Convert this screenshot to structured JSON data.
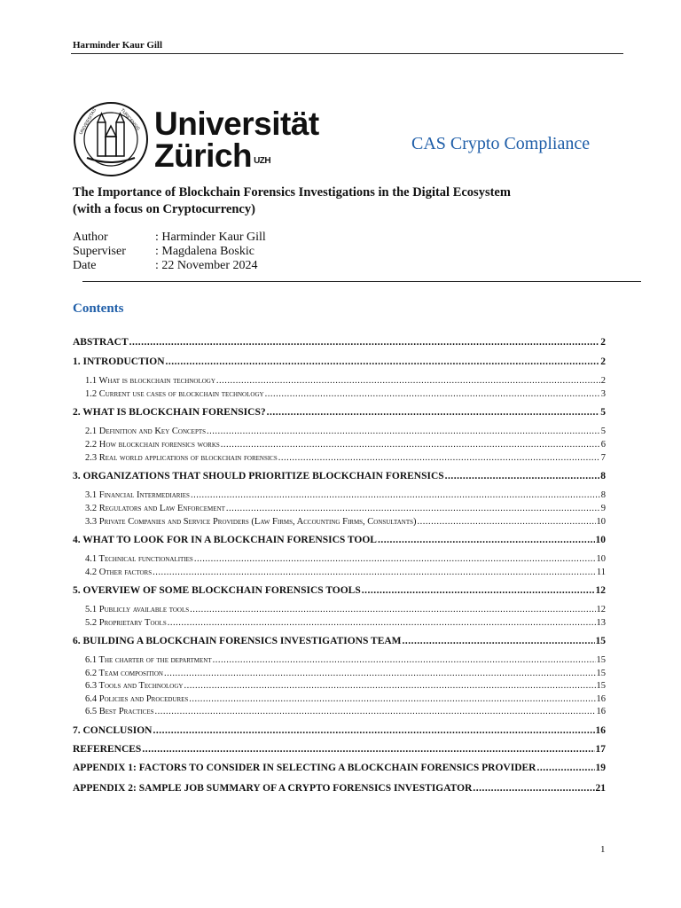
{
  "header": {
    "author_name": "Harminder Kaur Gill"
  },
  "logo": {
    "line1": "Universität",
    "line2": "Zürich",
    "suffix": "UZH",
    "seal_text": "UNIVERSITAS TURICENSIS MDCCCXXXIII"
  },
  "program": "CAS Crypto Compliance",
  "title": {
    "line1": "The Importance of Blockchain Forensics Investigations in the Digital Ecosystem",
    "line2": "(with a focus on Cryptocurrency)"
  },
  "meta": [
    {
      "label": "Author",
      "value": ": Harminder Kaur Gill"
    },
    {
      "label": "Superviser",
      "value": ": Magdalena Boskic"
    },
    {
      "label": "Date",
      "value": ": 22 November 2024"
    }
  ],
  "contents_heading": "Contents",
  "toc": [
    {
      "level": 1,
      "text": "ABSTRACT",
      "page": "2"
    },
    {
      "level": 1,
      "text": "1. INTRODUCTION",
      "page": "2"
    },
    {
      "level": 2,
      "text": "1.1 What is blockchain technology",
      "page": "2"
    },
    {
      "level": 2,
      "text": "1.2 Current use cases of blockchain technology",
      "page": "3"
    },
    {
      "level": 1,
      "text": "2. WHAT IS BLOCKCHAIN FORENSICS?",
      "page": "5"
    },
    {
      "level": 2,
      "text": "2.1 Definition and Key Concepts",
      "page": "5"
    },
    {
      "level": 2,
      "text": "2.2 How blockchain forensics works",
      "page": "6"
    },
    {
      "level": 2,
      "text": "2.3 Real world applications of blockchain forensics",
      "page": "7"
    },
    {
      "level": 1,
      "text": "3. ORGANIZATIONS THAT SHOULD PRIORITIZE BLOCKCHAIN FORENSICS",
      "page": "8"
    },
    {
      "level": 2,
      "text": "3.1 Financial Intermediaries",
      "page": "8"
    },
    {
      "level": 2,
      "text": "3.2 Regulators and Law Enforcement",
      "page": "9"
    },
    {
      "level": 2,
      "text": "3.3 Private Companies and Service Providers (Law Firms, Accounting Firms, Consultants)",
      "page": "10"
    },
    {
      "level": 1,
      "text": "4. WHAT TO LOOK FOR IN A BLOCKCHAIN FORENSICS TOOL",
      "page": "10"
    },
    {
      "level": 2,
      "text": "4.1 Technical functionalities",
      "page": "10"
    },
    {
      "level": 2,
      "text": "4.2 Other factors",
      "page": "11"
    },
    {
      "level": 1,
      "text": "5. OVERVIEW OF SOME BLOCKCHAIN FORENSICS TOOLS",
      "page": "12"
    },
    {
      "level": 2,
      "text": "5.1 Publicly available tools",
      "page": "12"
    },
    {
      "level": 2,
      "text": "5.2 Proprietary Tools",
      "page": "13"
    },
    {
      "level": 1,
      "text": "6. BUILDING A BLOCKCHAIN FORENSICS INVESTIGATIONS TEAM",
      "page": "15"
    },
    {
      "level": 2,
      "text": "6.1 The charter of the department",
      "page": "15"
    },
    {
      "level": 2,
      "text": "6.2 Team composition",
      "page": "15"
    },
    {
      "level": 2,
      "text": "6.3 Tools and Technology",
      "page": "15"
    },
    {
      "level": 2,
      "text": "6.4 Policies and Procedures",
      "page": "16"
    },
    {
      "level": 2,
      "text": "6.5 Best Practices",
      "page": "16"
    },
    {
      "level": 1,
      "text": "7. CONCLUSION",
      "page": "16"
    },
    {
      "level": 1,
      "text": "REFERENCES",
      "page": "17"
    },
    {
      "level": 1,
      "text": "APPENDIX 1: FACTORS TO CONSIDER IN SELECTING A BLOCKCHAIN FORENSICS PROVIDER",
      "page": "19"
    },
    {
      "level": 1,
      "text": "APPENDIX 2: SAMPLE JOB SUMMARY OF A CRYPTO FORENSICS INVESTIGATOR",
      "page": "21"
    }
  ],
  "page_number": "1",
  "colors": {
    "accent": "#1f5ea8",
    "text": "#111111"
  }
}
